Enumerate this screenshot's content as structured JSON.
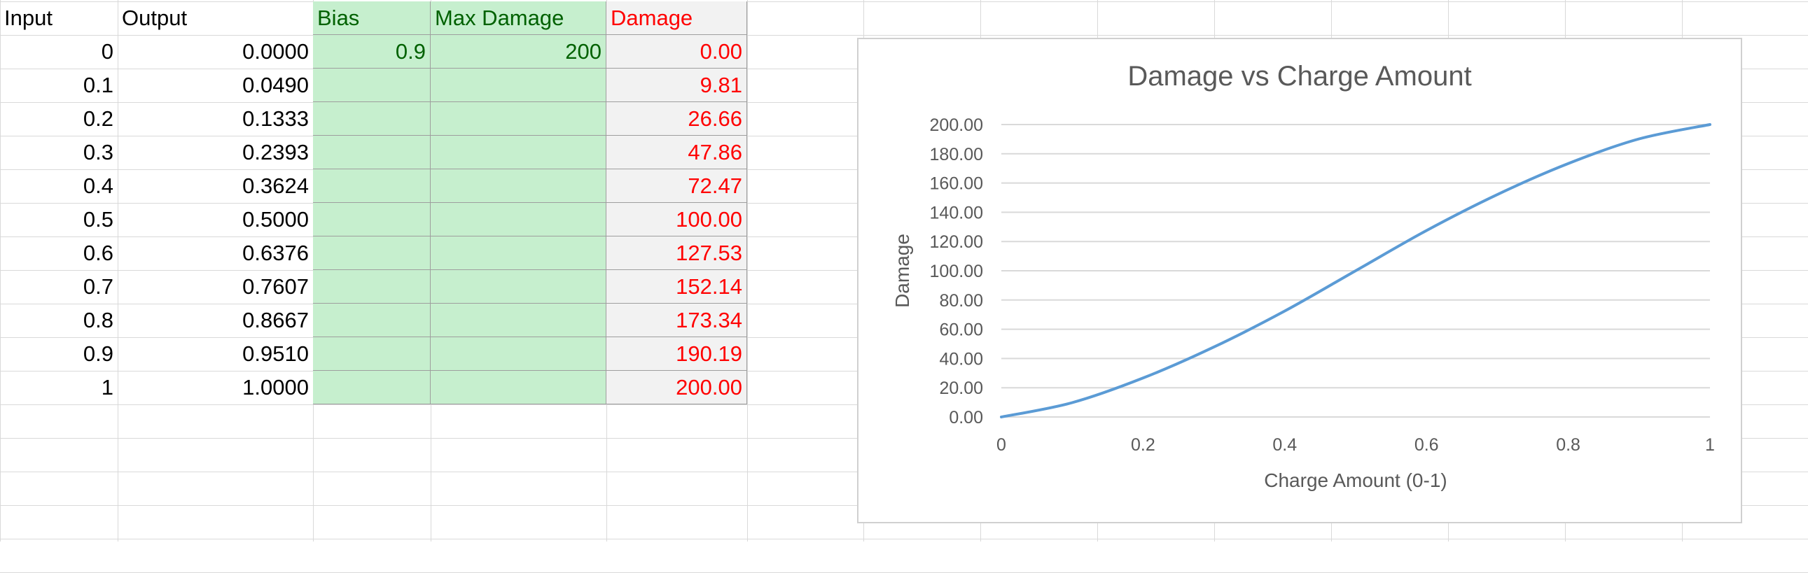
{
  "columns": {
    "input": "Input",
    "output": "Output",
    "bias": "Bias",
    "max_damage": "Max Damage",
    "damage": "Damage"
  },
  "params": {
    "bias": "0.9",
    "max_damage": "200"
  },
  "rows": [
    {
      "input": "0",
      "output": "0.0000",
      "damage": "0.00"
    },
    {
      "input": "0.1",
      "output": "0.0490",
      "damage": "9.81"
    },
    {
      "input": "0.2",
      "output": "0.1333",
      "damage": "26.66"
    },
    {
      "input": "0.3",
      "output": "0.2393",
      "damage": "47.86"
    },
    {
      "input": "0.4",
      "output": "0.3624",
      "damage": "72.47"
    },
    {
      "input": "0.5",
      "output": "0.5000",
      "damage": "100.00"
    },
    {
      "input": "0.6",
      "output": "0.6376",
      "damage": "127.53"
    },
    {
      "input": "0.7",
      "output": "0.7607",
      "damage": "152.14"
    },
    {
      "input": "0.8",
      "output": "0.8667",
      "damage": "173.34"
    },
    {
      "input": "0.9",
      "output": "0.9510",
      "damage": "190.19"
    },
    {
      "input": "1",
      "output": "1.0000",
      "damage": "200.00"
    }
  ],
  "colors": {
    "green_fill": "#c6efce",
    "green_text": "#006100",
    "damage_text": "#ff0000",
    "series_line": "#5b9bd5"
  },
  "chart_data": {
    "type": "line",
    "title": "Damage vs Charge Amount",
    "xlabel": "Charge Amount (0-1)",
    "ylabel": "Damage",
    "xlim": [
      0,
      1
    ],
    "ylim": [
      0,
      200
    ],
    "x_ticks": [
      "0",
      "0.2",
      "0.4",
      "0.6",
      "0.8",
      "1"
    ],
    "y_ticks": [
      "0.00",
      "20.00",
      "40.00",
      "60.00",
      "80.00",
      "100.00",
      "120.00",
      "140.00",
      "160.00",
      "180.00",
      "200.00"
    ],
    "grid": true,
    "legend": "none",
    "x": [
      0,
      0.1,
      0.2,
      0.3,
      0.4,
      0.5,
      0.6,
      0.7,
      0.8,
      0.9,
      1
    ],
    "series": [
      {
        "values": [
          0.0,
          9.81,
          26.66,
          47.86,
          72.47,
          100.0,
          127.53,
          152.14,
          173.34,
          190.19,
          200.0
        ]
      }
    ]
  }
}
